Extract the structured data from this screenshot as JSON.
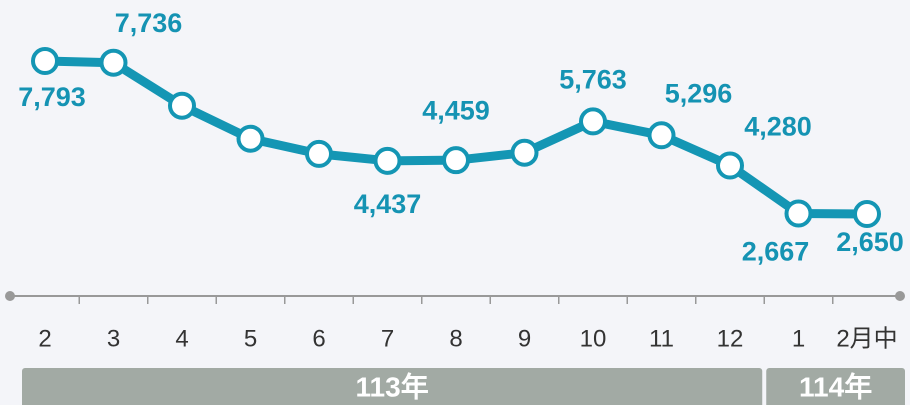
{
  "chart_data": {
    "type": "line",
    "categories": [
      "2",
      "3",
      "4",
      "5",
      "6",
      "7",
      "8",
      "9",
      "10",
      "11",
      "12",
      "1",
      "2月中"
    ],
    "series": [
      {
        "name": null,
        "color": "#1496b4",
        "values": [
          7793,
          7736,
          6290,
          5180,
          4670,
          4437,
          4459,
          4710,
          5763,
          5296,
          4280,
          2667,
          2650
        ],
        "value_labels": [
          "7,793",
          "7,736",
          null,
          null,
          null,
          "4,437",
          "4,459",
          null,
          "5,763",
          "5,296",
          "4,280",
          "2,667",
          "2,650"
        ]
      }
    ],
    "groups": [
      "113年",
      "114年"
    ]
  }
}
